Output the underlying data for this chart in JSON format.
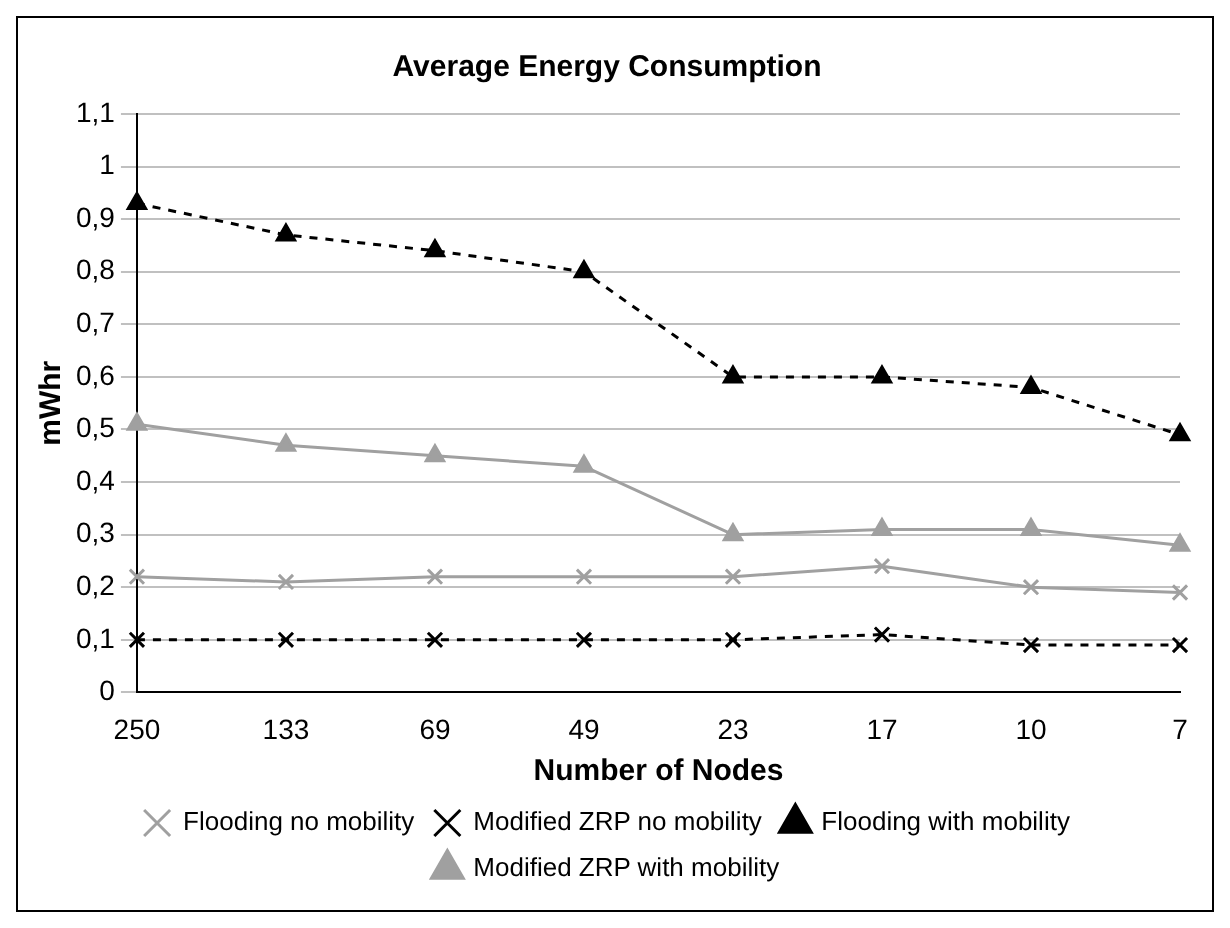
{
  "chart_data": {
    "type": "line",
    "title": "Average Energy Consumption",
    "xlabel": "Number of Nodes",
    "ylabel": "mWhr",
    "categories": [
      "250",
      "133",
      "69",
      "49",
      "23",
      "17",
      "10",
      "7"
    ],
    "series": [
      {
        "name": "Flooding no mobility",
        "color": "#a0a0a0",
        "marker": "cross",
        "line_style": "solid",
        "values": [
          0.22,
          0.21,
          0.22,
          0.22,
          0.22,
          0.24,
          0.2,
          0.19
        ]
      },
      {
        "name": "Modified ZRP no mobility",
        "color": "#000000",
        "marker": "cross",
        "line_style": "dashed",
        "values": [
          0.1,
          0.1,
          0.1,
          0.1,
          0.1,
          0.11,
          0.09,
          0.09
        ]
      },
      {
        "name": "Flooding with mobility",
        "color": "#000000",
        "marker": "triangle",
        "line_style": "dashed",
        "values": [
          0.93,
          0.87,
          0.84,
          0.8,
          0.6,
          0.6,
          0.58,
          0.49
        ]
      },
      {
        "name": "Modified ZRP with mobility",
        "color": "#a0a0a0",
        "marker": "triangle",
        "line_style": "solid",
        "values": [
          0.51,
          0.47,
          0.45,
          0.43,
          0.3,
          0.31,
          0.31,
          0.28
        ]
      }
    ],
    "ylim": [
      0,
      1.1
    ],
    "yticks": [
      0,
      {
        "value": 0.1,
        "label": "0,1"
      },
      {
        "value": 0.2,
        "label": "0,2"
      },
      {
        "value": 0.3,
        "label": "0,3"
      },
      {
        "value": 0.4,
        "label": "0,4"
      },
      {
        "value": 0.5,
        "label": "0,5"
      },
      {
        "value": 0.6,
        "label": "0,6"
      },
      {
        "value": 0.7,
        "label": "0,7"
      },
      {
        "value": 0.8,
        "label": "0,8"
      },
      {
        "value": 0.9,
        "label": "0,9"
      },
      1,
      {
        "value": 1.1,
        "label": "1,1"
      }
    ],
    "grid": "y",
    "legend": "bottom"
  }
}
